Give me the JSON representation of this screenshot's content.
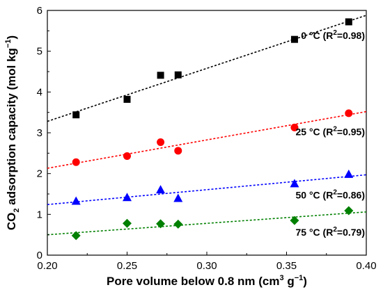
{
  "chart_data": {
    "type": "scatter",
    "xlabel": {
      "main": "Pore volume below 0.8 nm (cm",
      "sup1": "3",
      "mid": " g",
      "sup2": "−1",
      "end": ")"
    },
    "ylabel": {
      "pre": "CO",
      "sub": "2",
      "main": " adsorption capacity (mol kg",
      "sup": "−1",
      "end": ")"
    },
    "xlim": [
      0.2,
      0.4
    ],
    "ylim": [
      0,
      6
    ],
    "x_ticks": [
      "0.20",
      "0.25",
      "0.30",
      "0.35",
      "0.40"
    ],
    "y_ticks": [
      "0",
      "1",
      "2",
      "3",
      "4",
      "5",
      "6"
    ],
    "grid": false,
    "series": [
      {
        "temp": "0 °C",
        "label_pre": "0 °C (R",
        "label_sup": "2",
        "label_post": "=0.98)",
        "color": "#000000",
        "marker": "square",
        "points": [
          [
            0.218,
            3.44
          ],
          [
            0.25,
            3.82
          ],
          [
            0.271,
            4.41
          ],
          [
            0.282,
            4.42
          ],
          [
            0.355,
            5.29
          ],
          [
            0.389,
            5.72
          ]
        ],
        "fit": [
          [
            0.2,
            3.28
          ],
          [
            0.4,
            5.88
          ]
        ]
      },
      {
        "temp": "25 °C",
        "label_pre": "25 °C (R",
        "label_sup": "2",
        "label_post": "=0.95)",
        "color": "#ff0000",
        "marker": "circle",
        "points": [
          [
            0.218,
            2.28
          ],
          [
            0.25,
            2.43
          ],
          [
            0.271,
            2.77
          ],
          [
            0.282,
            2.56
          ],
          [
            0.355,
            3.13
          ],
          [
            0.389,
            3.48
          ]
        ],
        "fit": [
          [
            0.2,
            2.13
          ],
          [
            0.4,
            3.52
          ]
        ]
      },
      {
        "temp": "50 °C",
        "label_pre": "50 °C (R",
        "label_sup": "2",
        "label_post": "=0.86)",
        "color": "#0000ff",
        "marker": "triangle",
        "points": [
          [
            0.218,
            1.32
          ],
          [
            0.25,
            1.41
          ],
          [
            0.271,
            1.6
          ],
          [
            0.282,
            1.39
          ],
          [
            0.355,
            1.75
          ],
          [
            0.389,
            1.98
          ]
        ],
        "fit": [
          [
            0.2,
            1.24
          ],
          [
            0.4,
            1.97
          ]
        ]
      },
      {
        "temp": "75 °C",
        "label_pre": "75 °C (R",
        "label_sup": "2",
        "label_post": "=0.79)",
        "color": "#008000",
        "marker": "diamond",
        "points": [
          [
            0.218,
            0.48
          ],
          [
            0.25,
            0.78
          ],
          [
            0.271,
            0.77
          ],
          [
            0.282,
            0.76
          ],
          [
            0.355,
            0.85
          ],
          [
            0.389,
            1.09
          ]
        ],
        "fit": [
          [
            0.2,
            0.5
          ],
          [
            0.4,
            1.06
          ]
        ]
      }
    ]
  }
}
